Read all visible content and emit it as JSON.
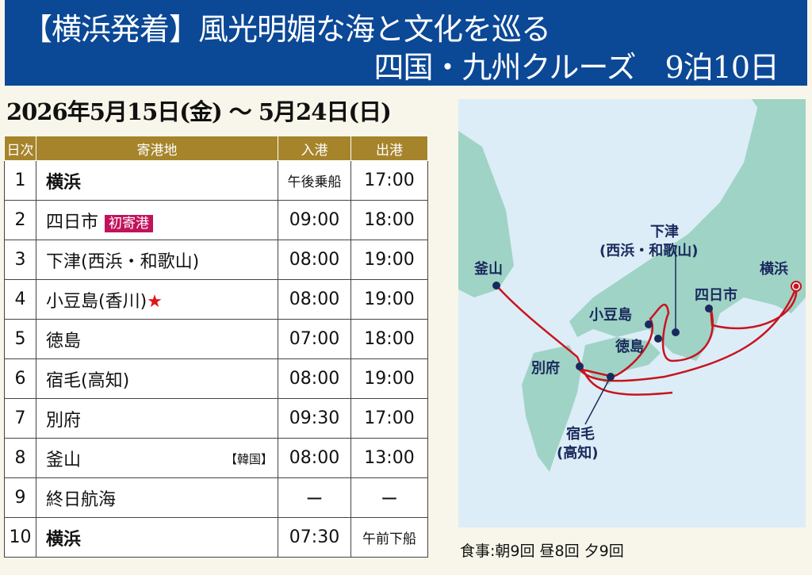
{
  "header": {
    "title_line1": "【横浜発着】風光明媚な海と文化を巡る",
    "title_line2": "四国・九州クルーズ　9泊10日"
  },
  "date_range": "2026年5月15日(金) ～ 5月24日(日)",
  "table": {
    "headers": [
      "日次",
      "寄港地",
      "入港",
      "出港"
    ],
    "rows": [
      {
        "day": "1",
        "port": "横浜",
        "arrive": "午後乗船",
        "depart": "17:00",
        "bold": true
      },
      {
        "day": "2",
        "port": "四日市",
        "badge": "初寄港",
        "arrive": "09:00",
        "depart": "18:00"
      },
      {
        "day": "3",
        "port": "下津(西浜・和歌山)",
        "arrive": "08:00",
        "depart": "19:00"
      },
      {
        "day": "4",
        "port": "小豆島(香川)",
        "star": "★",
        "arrive": "08:00",
        "depart": "19:00"
      },
      {
        "day": "5",
        "port": "徳島",
        "arrive": "07:00",
        "depart": "18:00"
      },
      {
        "day": "6",
        "port": "宿毛(高知)",
        "arrive": "08:00",
        "depart": "19:00"
      },
      {
        "day": "7",
        "port": "別府",
        "arrive": "09:30",
        "depart": "17:00"
      },
      {
        "day": "8",
        "port": "釜山",
        "note": "【韓国】",
        "arrive": "08:00",
        "depart": "13:00"
      },
      {
        "day": "9",
        "port": "終日航海",
        "arrive": "ー",
        "depart": "ー"
      },
      {
        "day": "10",
        "port": "横浜",
        "arrive": "07:30",
        "depart": "午前下船",
        "bold": true
      }
    ]
  },
  "map": {
    "labels": {
      "busan": "釜山",
      "shimotsu1": "下津",
      "shimotsu2": "(西浜・和歌山)",
      "yokohama": "横浜",
      "yokkaichi": "四日市",
      "shodoshima": "小豆島",
      "tokushima": "徳島",
      "beppu": "別府",
      "sukumo1": "宿毛",
      "sukumo2": "(高知)"
    },
    "colors": {
      "sea": "#dcedf7",
      "land": "#9fd3c6",
      "route": "#c8141e",
      "port": "#1a2a5c"
    }
  },
  "meals": "食事:朝9回 昼8回 夕9回"
}
